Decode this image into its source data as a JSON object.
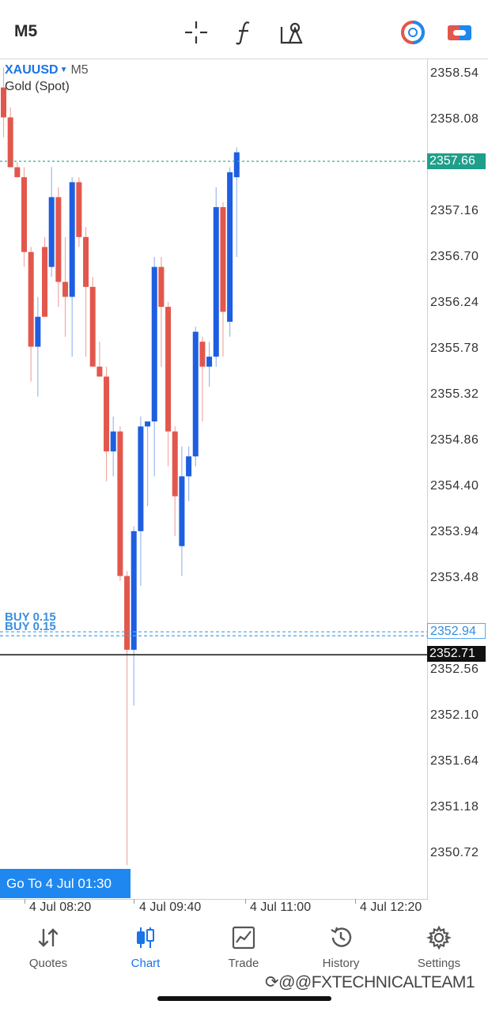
{
  "toolbar": {
    "timeframe": "M5",
    "icons": [
      "crosshair-icon",
      "indicators-icon",
      "objects-icon",
      "account-color-icon",
      "toggle-icon"
    ]
  },
  "chart": {
    "symbol": "XAUUSD",
    "symbol_timeframe": "M5",
    "description": "Gold (Spot)",
    "price_labels": [
      "2358.54",
      "2358.08",
      "2357.16",
      "2356.70",
      "2356.24",
      "2355.78",
      "2355.32",
      "2354.86",
      "2354.40",
      "2353.94",
      "2353.48",
      "2352.56",
      "2352.10",
      "2351.64",
      "2351.18",
      "2350.72"
    ],
    "ask_tag": "2357.66",
    "buy_tag": "2352.94",
    "bid_tag": "2352.71",
    "buy_label": "BUY 0.15",
    "goto_label": "Go To 4 Jul 01:30",
    "time_labels": [
      "4 Jul 08:20",
      "4 Jul 09:40",
      "4 Jul 11:00",
      "4 Jul 12:20"
    ],
    "colors": {
      "bull": "#1e5ee0",
      "bear": "#e2574c",
      "ask_line": "#3aa99a",
      "bid_line": "#111111",
      "buy_line": "#5aa9ef"
    }
  },
  "chart_data": {
    "type": "candlestick",
    "ylim": [
      2350.5,
      2358.75
    ],
    "candles": [
      {
        "o": 2358.4,
        "h": 2358.6,
        "l": 2357.9,
        "c": 2358.1
      },
      {
        "o": 2358.1,
        "h": 2358.2,
        "l": 2357.6,
        "c": 2357.6
      },
      {
        "o": 2357.6,
        "h": 2357.65,
        "l": 2357.5,
        "c": 2357.5
      },
      {
        "o": 2357.5,
        "h": 2357.6,
        "l": 2356.6,
        "c": 2356.75
      },
      {
        "o": 2356.75,
        "h": 2356.8,
        "l": 2355.45,
        "c": 2355.8
      },
      {
        "o": 2355.8,
        "h": 2356.3,
        "l": 2355.3,
        "c": 2356.1
      },
      {
        "o": 2356.8,
        "h": 2356.9,
        "l": 2356.1,
        "c": 2356.1
      },
      {
        "o": 2356.6,
        "h": 2357.6,
        "l": 2356.5,
        "c": 2357.3
      },
      {
        "o": 2357.3,
        "h": 2357.4,
        "l": 2356.2,
        "c": 2356.45
      },
      {
        "o": 2356.45,
        "h": 2356.9,
        "l": 2355.9,
        "c": 2356.3
      },
      {
        "o": 2356.3,
        "h": 2357.5,
        "l": 2355.7,
        "c": 2357.45
      },
      {
        "o": 2357.45,
        "h": 2357.5,
        "l": 2356.8,
        "c": 2356.9
      },
      {
        "o": 2356.9,
        "h": 2357.0,
        "l": 2355.7,
        "c": 2356.4
      },
      {
        "o": 2356.4,
        "h": 2356.5,
        "l": 2355.65,
        "c": 2355.6
      },
      {
        "o": 2355.6,
        "h": 2355.85,
        "l": 2355.5,
        "c": 2355.5
      },
      {
        "o": 2355.5,
        "h": 2355.6,
        "l": 2354.45,
        "c": 2354.75
      },
      {
        "o": 2354.75,
        "h": 2355.1,
        "l": 2354.5,
        "c": 2354.95
      },
      {
        "o": 2354.95,
        "h": 2355.0,
        "l": 2353.45,
        "c": 2353.5
      },
      {
        "o": 2353.5,
        "h": 2353.55,
        "l": 2350.6,
        "c": 2352.76
      },
      {
        "o": 2352.76,
        "h": 2354.0,
        "l": 2352.2,
        "c": 2353.95
      },
      {
        "o": 2353.95,
        "h": 2355.1,
        "l": 2353.4,
        "c": 2355.0
      },
      {
        "o": 2355.0,
        "h": 2355.05,
        "l": 2354.2,
        "c": 2355.05
      },
      {
        "o": 2355.05,
        "h": 2356.7,
        "l": 2354.5,
        "c": 2356.6
      },
      {
        "o": 2356.6,
        "h": 2356.7,
        "l": 2355.6,
        "c": 2356.2
      },
      {
        "o": 2356.2,
        "h": 2356.25,
        "l": 2354.6,
        "c": 2354.95
      },
      {
        "o": 2354.95,
        "h": 2355.0,
        "l": 2353.9,
        "c": 2354.3
      },
      {
        "o": 2353.8,
        "h": 2354.8,
        "l": 2353.5,
        "c": 2354.5
      },
      {
        "o": 2354.5,
        "h": 2354.8,
        "l": 2354.25,
        "c": 2354.7
      },
      {
        "o": 2354.7,
        "h": 2356.0,
        "l": 2354.6,
        "c": 2355.95
      },
      {
        "o": 2355.85,
        "h": 2355.9,
        "l": 2355.05,
        "c": 2355.6
      },
      {
        "o": 2355.6,
        "h": 2355.85,
        "l": 2355.4,
        "c": 2355.7
      },
      {
        "o": 2355.7,
        "h": 2357.4,
        "l": 2355.6,
        "c": 2357.2
      },
      {
        "o": 2357.2,
        "h": 2357.25,
        "l": 2355.7,
        "c": 2356.15
      },
      {
        "o": 2356.05,
        "h": 2357.6,
        "l": 2355.9,
        "c": 2357.55
      },
      {
        "o": 2357.5,
        "h": 2357.8,
        "l": 2356.7,
        "c": 2357.75
      }
    ],
    "ask": 2357.66,
    "buy": 2352.94,
    "bid": 2352.71,
    "buy_lot": 0.15,
    "grid": false
  },
  "navbar": {
    "items": [
      {
        "label": "Quotes",
        "icon": "quotes-icon",
        "active": false
      },
      {
        "label": "Chart",
        "icon": "chart-icon",
        "active": true
      },
      {
        "label": "Trade",
        "icon": "trade-icon",
        "active": false
      },
      {
        "label": "History",
        "icon": "history-icon",
        "active": false
      },
      {
        "label": "Settings",
        "icon": "settings-icon",
        "active": false
      }
    ]
  },
  "watermark": "⟳@@FXTECHNICALTEAM1"
}
